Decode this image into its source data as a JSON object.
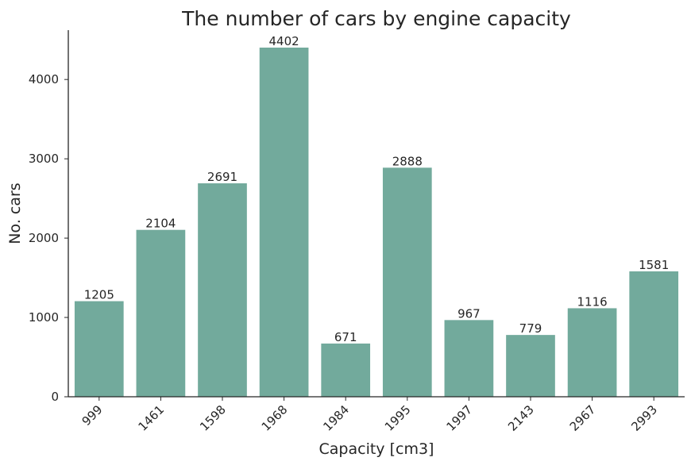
{
  "chart_data": {
    "type": "bar",
    "title": "The number of cars by engine capacity",
    "xlabel": "Capacity [cm3]",
    "ylabel": "No. cars",
    "categories": [
      "999",
      "1461",
      "1598",
      "1968",
      "1984",
      "1995",
      "1997",
      "2143",
      "2967",
      "2993"
    ],
    "values": [
      1205,
      2104,
      2691,
      4402,
      671,
      2888,
      967,
      779,
      1116,
      1581
    ],
    "yticks": [
      0,
      1000,
      2000,
      3000,
      4000
    ],
    "ylim": [
      0,
      4622
    ],
    "grid": false,
    "bar_color": "#72aa9c",
    "data_labels": true
  }
}
